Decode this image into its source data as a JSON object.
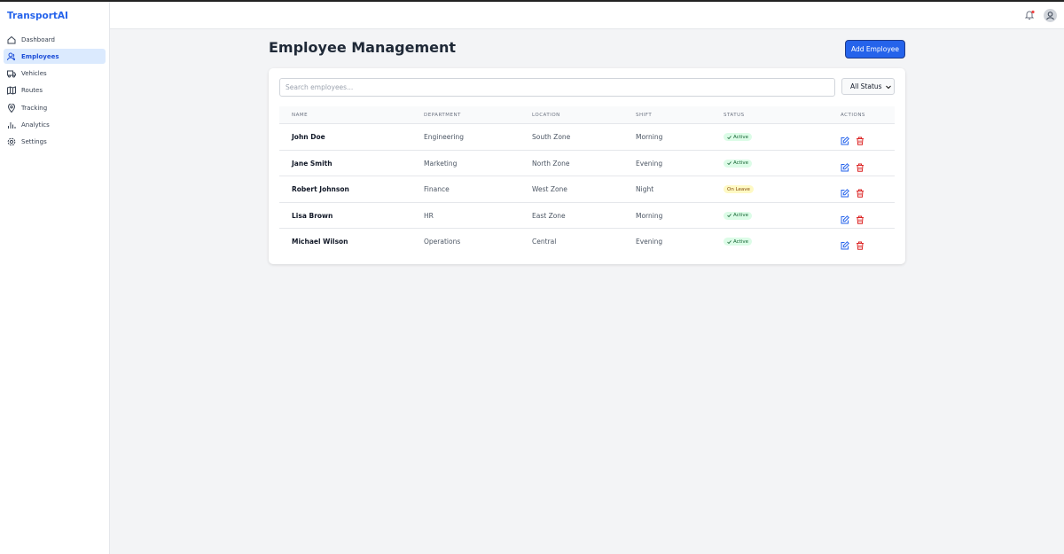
{
  "brand": "TransportAI",
  "nav": [
    "Dashboard",
    "Employees",
    "Vehicles",
    "Routes",
    "Tracking",
    "Analytics",
    "Settings"
  ],
  "active_nav": 1,
  "page": {
    "title": "Employee Management",
    "add_button": "Add Employee"
  },
  "filters": {
    "search_placeholder": "Search employees...",
    "status_select": "All Status"
  },
  "table": {
    "columns": [
      "Name",
      "Department",
      "Location",
      "Shift",
      "Status",
      "Actions"
    ],
    "rows": [
      {
        "name": "John Doe",
        "department": "Engineering",
        "location": "South Zone",
        "shift": "Morning",
        "status": "Active"
      },
      {
        "name": "Jane Smith",
        "department": "Marketing",
        "location": "North Zone",
        "shift": "Evening",
        "status": "Active"
      },
      {
        "name": "Robert Johnson",
        "department": "Finance",
        "location": "West Zone",
        "shift": "Night",
        "status": "On Leave"
      },
      {
        "name": "Lisa Brown",
        "department": "HR",
        "location": "East Zone",
        "shift": "Morning",
        "status": "Active"
      },
      {
        "name": "Michael Wilson",
        "department": "Operations",
        "location": "Central",
        "shift": "Evening",
        "status": "Active"
      }
    ]
  }
}
